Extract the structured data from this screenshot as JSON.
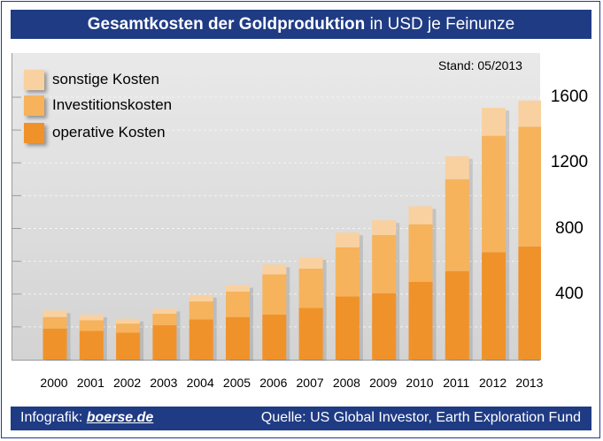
{
  "header": {
    "title_bold": "Gesamtkosten der Goldproduktion",
    "title_rest": "in USD je Feinunze"
  },
  "stand": "Stand: 05/2013",
  "footer": {
    "prefix": "Infografik:",
    "brand": "boerse.de",
    "source": "Quelle: US Global Investor, Earth Exploration Fund"
  },
  "colors": {
    "title_bar": "#1f3b84",
    "operative": "#f0922a",
    "investition": "#f6b35c",
    "sonstige": "#f9d1a0"
  },
  "chart_data": {
    "type": "bar",
    "stacked": true,
    "categories": [
      "2000",
      "2001",
      "2002",
      "2003",
      "2004",
      "2005",
      "2006",
      "2007",
      "2008",
      "2009",
      "2010",
      "2011",
      "2012",
      "2013"
    ],
    "series": [
      {
        "name": "operative Kosten",
        "values": [
          190,
          175,
          165,
          210,
          245,
          260,
          275,
          315,
          385,
          405,
          475,
          540,
          655,
          690
        ]
      },
      {
        "name": "Investitionskosten",
        "values": [
          70,
          65,
          55,
          70,
          110,
          155,
          245,
          240,
          300,
          355,
          350,
          560,
          710,
          730
        ]
      },
      {
        "name": "sonstige Kosten",
        "values": [
          40,
          35,
          30,
          30,
          40,
          40,
          60,
          70,
          90,
          90,
          110,
          140,
          170,
          160
        ]
      }
    ],
    "legend": [
      "sonstige Kosten",
      "Investitionskosten",
      "operative Kosten"
    ],
    "legend_position": "top-left",
    "y_axis_side": "right",
    "yticks": [
      "400",
      "800",
      "1200",
      "1600"
    ],
    "ylim": [
      0,
      1800
    ],
    "grid": true
  }
}
